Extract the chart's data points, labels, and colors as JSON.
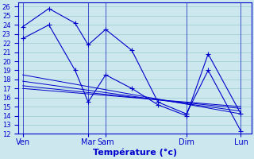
{
  "xlabel": "Température (°c)",
  "background_color": "#cce8ee",
  "grid_color": "#99cccc",
  "line_color": "#0000cc",
  "ylim": [
    12,
    26.5
  ],
  "ytick_min": 12,
  "ytick_max": 26,
  "x_tick_positions": [
    0,
    3.0,
    3.8,
    7.5,
    10.0
  ],
  "x_tick_labels": [
    "Ven",
    "Mar",
    "Sam",
    "Dim",
    "Lun"
  ],
  "xlim": [
    -0.2,
    10.5
  ],
  "lines": [
    {
      "x": [
        0,
        1.2,
        2.4,
        3.0,
        3.8,
        5.0,
        6.2,
        7.5,
        8.5,
        10.0
      ],
      "y": [
        23.8,
        25.8,
        24.2,
        21.8,
        23.5,
        21.2,
        15.5,
        14.2,
        19.0,
        12.3
      ]
    },
    {
      "x": [
        0,
        1.2,
        2.4,
        3.0,
        3.8,
        5.0,
        6.2,
        7.5,
        8.5,
        10.0
      ],
      "y": [
        22.5,
        24.0,
        19.0,
        15.5,
        18.5,
        17.0,
        15.2,
        14.0,
        20.8,
        14.2
      ]
    },
    {
      "x": [
        0,
        10.0
      ],
      "y": [
        18.5,
        14.2
      ]
    },
    {
      "x": [
        0,
        10.0
      ],
      "y": [
        17.8,
        14.5
      ]
    },
    {
      "x": [
        0,
        10.0
      ],
      "y": [
        17.3,
        14.8
      ]
    },
    {
      "x": [
        0,
        10.0
      ],
      "y": [
        17.0,
        15.0
      ]
    }
  ],
  "marker_lines": [
    {
      "x": [
        0,
        1.2,
        2.4,
        3.0,
        3.8,
        5.0,
        6.2,
        7.5,
        8.5,
        10.0
      ],
      "y": [
        23.8,
        25.8,
        24.2,
        21.8,
        23.5,
        21.2,
        15.5,
        14.2,
        19.0,
        12.3
      ]
    },
    {
      "x": [
        0,
        1.2,
        2.4,
        3.0,
        3.8,
        5.0,
        6.2,
        7.5,
        8.5,
        10.0
      ],
      "y": [
        22.5,
        24.0,
        19.0,
        15.5,
        18.5,
        17.0,
        15.2,
        14.0,
        20.8,
        14.2
      ]
    }
  ]
}
